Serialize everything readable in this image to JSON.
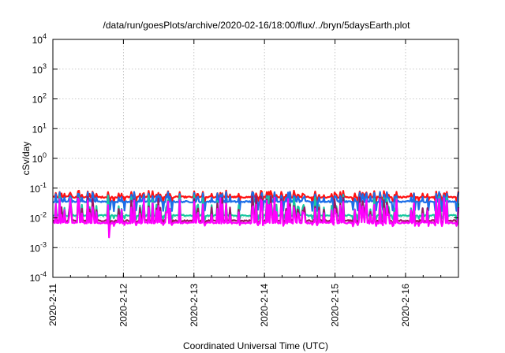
{
  "chart_data": {
    "type": "line",
    "title": "/data/run/goesPlots/archive/2020-02-16/18:00/flux/../bryn/5daysEarth.plot",
    "xlabel": "Coordinated Universal Time (UTC)",
    "ylabel": "cSv/day",
    "yscale": "log",
    "ylim": [
      0.0001,
      10000
    ],
    "y_ticks": [
      {
        "mantissa": "10",
        "exp": "-4",
        "value": 0.0001
      },
      {
        "mantissa": "10",
        "exp": "-3",
        "value": 0.001
      },
      {
        "mantissa": "10",
        "exp": "-2",
        "value": 0.01
      },
      {
        "mantissa": "10",
        "exp": "-1",
        "value": 0.1
      },
      {
        "mantissa": "10",
        "exp": "0",
        "value": 1
      },
      {
        "mantissa": "10",
        "exp": "1",
        "value": 10
      },
      {
        "mantissa": "10",
        "exp": "2",
        "value": 100
      },
      {
        "mantissa": "10",
        "exp": "3",
        "value": 1000
      },
      {
        "mantissa": "10",
        "exp": "4",
        "value": 10000
      }
    ],
    "xlim": [
      "2020-02-11 00:00",
      "2020-02-16 18:00"
    ],
    "x_ticks": [
      "2020-2-11",
      "2020-2-12",
      "2020-2-13",
      "2020-2-14",
      "2020-2-15",
      "2020-2-16"
    ],
    "grid": true,
    "colors": {
      "red": "#ff1010",
      "blue": "#1c6ee8",
      "green": "#18c8a0",
      "purple": "#9a1464",
      "magenta": "#ff00ff"
    },
    "series": [
      {
        "color_key": "red",
        "baseline": 0.05,
        "spike": 0.08,
        "dip": 0.035
      },
      {
        "color_key": "blue",
        "baseline": 0.035,
        "spike": 0.07,
        "dip": 0.018
      },
      {
        "color_key": "green",
        "baseline": 0.012,
        "spike": 0.05,
        "dip": 0.009
      },
      {
        "color_key": "purple",
        "baseline": 0.008,
        "spike": 0.045,
        "dip": 0.006
      },
      {
        "color_key": "magenta",
        "baseline": 0.0068,
        "spike": 0.04,
        "dip": 0.0055,
        "min_point": {
          "x": "2020-02-11 19:00",
          "y": 0.0022
        }
      }
    ]
  }
}
